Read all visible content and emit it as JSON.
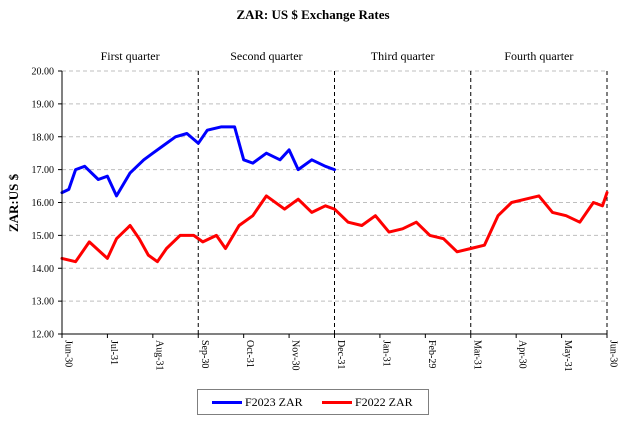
{
  "chart_data": {
    "type": "line",
    "title": "ZAR: US $ Exchange Rates",
    "ylabel": "ZAR:US $",
    "xlabel": "",
    "ylim": [
      12.0,
      20.0
    ],
    "y_ticks": [
      "12.00",
      "13.00",
      "14.00",
      "15.00",
      "16.00",
      "17.00",
      "18.00",
      "19.00",
      "20.00"
    ],
    "x_ticks": [
      "Jun-30",
      "Jul-31",
      "Aug-31",
      "Sep-30",
      "Oct-31",
      "Nov-30",
      "Dec-31",
      "Jan-31",
      "Feb-29",
      "Mar-31",
      "Apr-30",
      "May-31",
      "Jun-30"
    ],
    "quarters": [
      "First quarter",
      "Second quarter",
      "Third quarter",
      "Fourth quarter"
    ],
    "quarter_boundaries": [
      "Sep-30",
      "Dec-31",
      "Mar-31",
      "Jun-30"
    ],
    "grid": true,
    "legend_position": "bottom",
    "series": [
      {
        "name": "F2023 ZAR",
        "color": "#0000ff",
        "x_months": [
          0,
          0.15,
          0.3,
          0.5,
          0.8,
          1.0,
          1.2,
          1.5,
          1.8,
          2.0,
          2.2,
          2.5,
          2.75,
          3.0,
          3.2,
          3.5,
          3.8,
          4.0,
          4.2,
          4.5,
          4.8,
          5.0,
          5.2,
          5.5,
          5.8,
          6.0
        ],
        "values": [
          16.3,
          16.4,
          17.0,
          17.1,
          16.7,
          16.8,
          16.2,
          16.9,
          17.3,
          17.5,
          17.7,
          18.0,
          18.1,
          17.8,
          18.2,
          18.3,
          18.3,
          17.3,
          17.2,
          17.5,
          17.3,
          17.6,
          17.0,
          17.3,
          17.1,
          17.0
        ]
      },
      {
        "name": "F2022 ZAR",
        "color": "#ff0000",
        "x_months": [
          0,
          0.3,
          0.6,
          1.0,
          1.2,
          1.5,
          1.7,
          1.9,
          2.1,
          2.3,
          2.6,
          2.9,
          3.1,
          3.4,
          3.6,
          3.9,
          4.2,
          4.5,
          4.9,
          5.2,
          5.5,
          5.8,
          6.0,
          6.3,
          6.6,
          6.9,
          7.2,
          7.5,
          7.8,
          8.1,
          8.4,
          8.7,
          9.0,
          9.3,
          9.6,
          9.9,
          10.2,
          10.5,
          10.8,
          11.1,
          11.4,
          11.7,
          11.9,
          12.0
        ],
        "values": [
          14.3,
          14.2,
          14.8,
          14.3,
          14.9,
          15.3,
          14.9,
          14.4,
          14.2,
          14.6,
          15.0,
          15.0,
          14.8,
          15.0,
          14.6,
          15.3,
          15.6,
          16.2,
          15.8,
          16.1,
          15.7,
          15.9,
          15.8,
          15.4,
          15.3,
          15.6,
          15.1,
          15.2,
          15.4,
          15.0,
          14.9,
          14.5,
          14.6,
          14.7,
          15.6,
          16.0,
          16.1,
          16.2,
          15.7,
          15.6,
          15.4,
          16.0,
          15.9,
          16.3
        ]
      }
    ]
  }
}
